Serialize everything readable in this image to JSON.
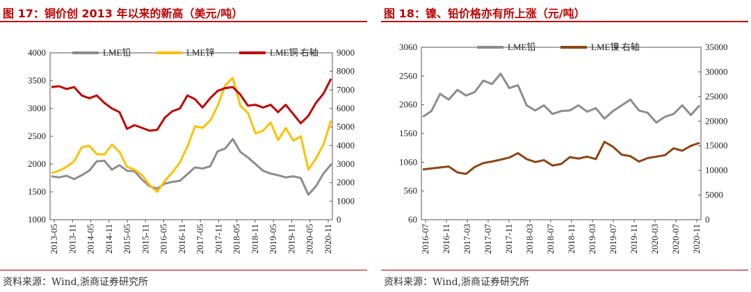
{
  "left": {
    "title": "图 17：铜价创 2013 年以来的新高（美元/吨）",
    "source": "资料来源：Wind,浙商证券研究所",
    "chart_data": {
      "type": "line",
      "x_labels": [
        "2013-05",
        "2013-11",
        "2014-05",
        "2014-11",
        "2015-05",
        "2015-11",
        "2016-05",
        "2016-11",
        "2017-05",
        "2017-11",
        "2018-05",
        "2018-11",
        "2019-05",
        "2019-11",
        "2020-05",
        "2020-11"
      ],
      "y_left": {
        "min": 1000,
        "max": 4000,
        "ticks": [
          "4000",
          "3500",
          "3000",
          "2500",
          "2000",
          "1500",
          "1000"
        ]
      },
      "y_right": {
        "min": 0,
        "max": 9000,
        "ticks": [
          "9000",
          "8000",
          "7000",
          "6000",
          "5000",
          "4000",
          "3000",
          "2000",
          "1000",
          "0"
        ]
      },
      "series": [
        {
          "name": "LME铅",
          "axis": "left",
          "color": "#8c8c8c",
          "values": [
            1780,
            1760,
            1790,
            1730,
            1800,
            1880,
            2050,
            2060,
            1900,
            1980,
            1880,
            1870,
            1720,
            1600,
            1560,
            1650,
            1680,
            1700,
            1820,
            1940,
            1920,
            1960,
            2230,
            2280,
            2450,
            2220,
            2120,
            2000,
            1880,
            1830,
            1800,
            1760,
            1780,
            1750,
            1450,
            1600,
            1830,
            1990
          ]
        },
        {
          "name": "LME锌",
          "axis": "left",
          "color": "#ffc000",
          "values": [
            1840,
            1880,
            1950,
            2050,
            2300,
            2330,
            2180,
            2170,
            2350,
            2220,
            1950,
            1900,
            1800,
            1620,
            1500,
            1700,
            1850,
            2030,
            2320,
            2680,
            2650,
            2780,
            3050,
            3420,
            3550,
            3050,
            2920,
            2550,
            2600,
            2750,
            2430,
            2650,
            2420,
            2500,
            1900,
            2100,
            2350,
            2780
          ]
        },
        {
          "name": "LME铜 右轴",
          "axis": "right",
          "color": "#c00000",
          "values": [
            7150,
            7200,
            7050,
            7150,
            6700,
            6550,
            6700,
            6300,
            6000,
            5800,
            4900,
            5100,
            4950,
            4800,
            4850,
            5500,
            5850,
            6000,
            6700,
            6500,
            6050,
            6550,
            6950,
            7100,
            7150,
            6750,
            6150,
            6200,
            6050,
            6200,
            5800,
            6200,
            5700,
            5200,
            5600,
            6300,
            6800,
            7600
          ]
        }
      ]
    }
  },
  "right": {
    "title": "图 18：镍、铅价格亦有所上涨（元/吨）",
    "source": "资料来源：Wind,浙商证券研究所",
    "chart_data": {
      "type": "line",
      "x_labels": [
        "2016-07",
        "2016-11",
        "2017-03",
        "2017-07",
        "2017-11",
        "2018-03",
        "2018-07",
        "2018-11",
        "2019-03",
        "2019-07",
        "2019-11",
        "2020-03",
        "2020-07",
        "2020-11"
      ],
      "y_left": {
        "min": 60,
        "max": 3060,
        "ticks": [
          "3060",
          "2560",
          "2060",
          "1560",
          "1060",
          "560",
          "60"
        ]
      },
      "y_right": {
        "min": 0,
        "max": 35000,
        "ticks": [
          "35000",
          "30000",
          "25000",
          "20000",
          "15000",
          "10000",
          "5000",
          "0"
        ]
      },
      "series": [
        {
          "name": "LME铅",
          "axis": "left",
          "color": "#8c8c8c",
          "values": [
            1850,
            1950,
            2250,
            2150,
            2320,
            2220,
            2280,
            2480,
            2420,
            2600,
            2350,
            2400,
            2050,
            1960,
            2050,
            1900,
            1950,
            1960,
            2050,
            1940,
            2000,
            1820,
            1950,
            2050,
            2150,
            1960,
            1920,
            1750,
            1850,
            1900,
            2050,
            1880,
            2050
          ]
        },
        {
          "name": "LME镍 右轴",
          "axis": "right",
          "color": "#8b4513",
          "values": [
            10200,
            10400,
            10600,
            10800,
            9600,
            9300,
            10700,
            11500,
            11800,
            12200,
            12600,
            13500,
            12300,
            11700,
            12100,
            11000,
            11300,
            12700,
            12400,
            12800,
            12300,
            15800,
            14800,
            13200,
            12900,
            11800,
            12500,
            12800,
            13100,
            14500,
            14000,
            15000,
            15600
          ]
        }
      ]
    }
  }
}
